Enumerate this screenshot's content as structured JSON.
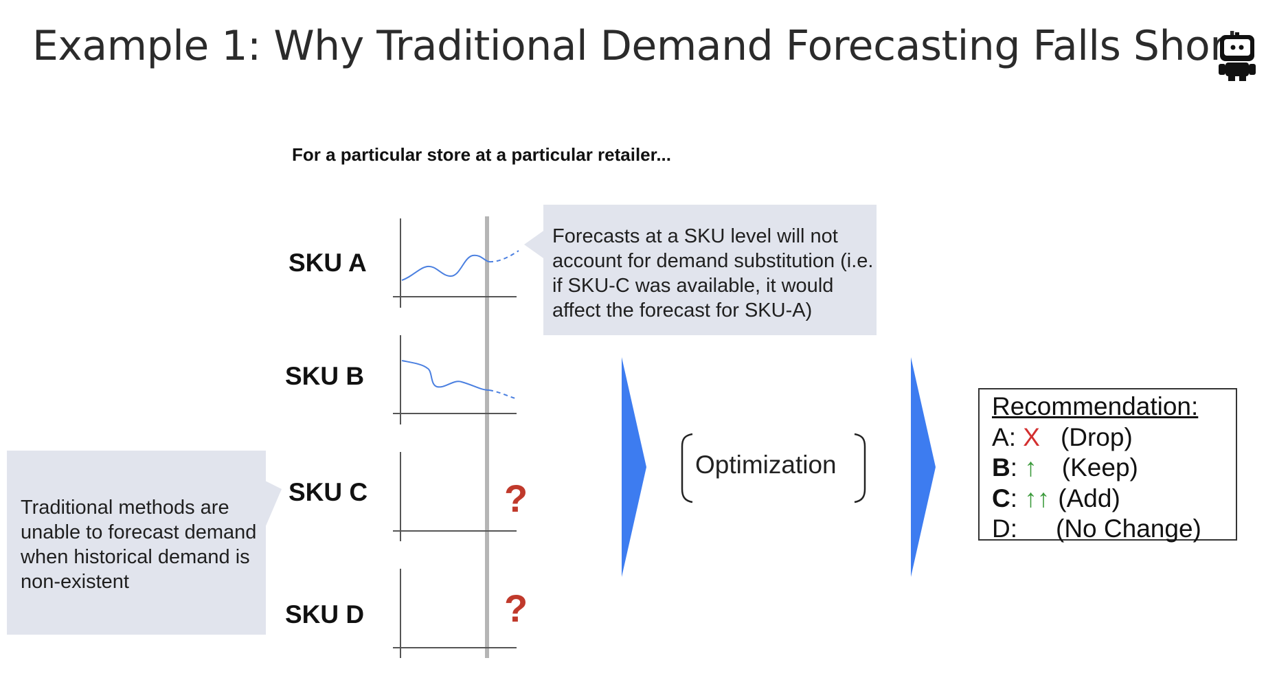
{
  "title": "Example 1: Why Traditional Demand Forecasting Falls Short",
  "subtitle": "For a particular store at a particular retailer...",
  "skus": [
    {
      "label": "SKU A"
    },
    {
      "label": "SKU B"
    },
    {
      "label": "SKU C"
    },
    {
      "label": "SKU D"
    }
  ],
  "unknown_mark": "?",
  "callout_sku_level": "Forecasts at a SKU level will not account for demand substitution (i.e. if SKU-C was available, it would affect the forecast for SKU-A)",
  "callout_traditional": "Traditional methods are unable to forecast demand when historical demand is non-existent",
  "optimization_label": "Optimization",
  "recommendation": {
    "title": "Recommendation:",
    "rows": [
      {
        "key": "A",
        "sep": ":",
        "symbol": "X",
        "action": "(Drop)"
      },
      {
        "key": "B",
        "sep": ":",
        "symbol": "↑",
        "action": "(Keep)"
      },
      {
        "key": "C",
        "sep": ":",
        "symbol": "↑↑",
        "action": "(Add)"
      },
      {
        "key": "D",
        "sep": ":",
        "symbol": "",
        "action": "(No Change)"
      }
    ]
  },
  "colors": {
    "forecast_line": "#4a7fe0",
    "arrow_blue": "#3d7cf0",
    "callout_bg": "#e1e4ed",
    "drop_red": "#d32f2f",
    "keep_green": "#3b9a3b",
    "question_red": "#c0392b"
  },
  "icons": {
    "logo": "robot-icon"
  }
}
